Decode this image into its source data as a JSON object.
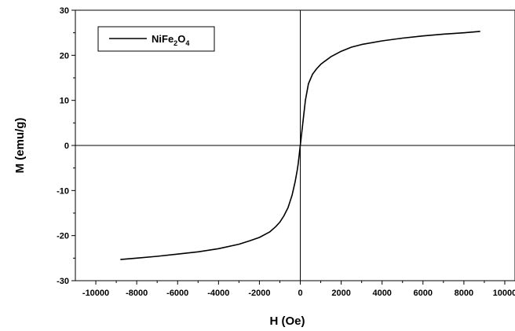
{
  "chart_data": {
    "type": "line",
    "xlabel": "H (Oe)",
    "ylabel": "M (emu/g)",
    "xlim": [
      -11000,
      10500
    ],
    "ylim": [
      -30,
      30
    ],
    "x_ticks": [
      -10000,
      -8000,
      -6000,
      -4000,
      -2000,
      0,
      2000,
      4000,
      6000,
      8000,
      10000
    ],
    "y_ticks": [
      -30,
      -20,
      -10,
      0,
      10,
      20,
      30
    ],
    "x_tick_labels": [
      "-10000",
      "-8000",
      "-6000",
      "-4000",
      "-2000",
      "0",
      "2000",
      "4000",
      "6000",
      "8000",
      "10000"
    ],
    "y_tick_labels": [
      "-30",
      "-20",
      "-10",
      "0",
      "10",
      "20",
      "30"
    ],
    "zero_lines": true,
    "grid": false,
    "legend": {
      "position": "top-left",
      "entries": [
        {
          "formula_parts": [
            {
              "text": "NiFe",
              "sub": false
            },
            {
              "text": "2",
              "sub": true
            },
            {
              "text": "O",
              "sub": false
            },
            {
              "text": "4",
              "sub": true
            }
          ]
        }
      ]
    },
    "series": [
      {
        "color": "#000000",
        "x": [
          -8800,
          -8000,
          -7000,
          -6000,
          -5000,
          -4000,
          -3000,
          -2500,
          -2000,
          -1500,
          -1200,
          -1000,
          -800,
          -600,
          -400,
          -250,
          -150,
          -100,
          -50,
          0,
          50,
          100,
          150,
          250,
          400,
          600,
          800,
          1000,
          1200,
          1500,
          2000,
          2500,
          3000,
          4000,
          5000,
          6000,
          7000,
          8000,
          8800
        ],
        "y": [
          -25.3,
          -25.0,
          -24.6,
          -24.1,
          -23.6,
          -22.9,
          -21.9,
          -21.2,
          -20.4,
          -19.2,
          -18.0,
          -17.0,
          -15.6,
          -13.8,
          -11.0,
          -8.0,
          -5.5,
          -4.0,
          -2.0,
          0.0,
          2.0,
          4.0,
          6.0,
          10.0,
          13.7,
          15.8,
          17.0,
          18.0,
          18.7,
          19.7,
          20.9,
          21.8,
          22.4,
          23.2,
          23.8,
          24.3,
          24.7,
          25.0,
          25.3
        ]
      }
    ]
  }
}
